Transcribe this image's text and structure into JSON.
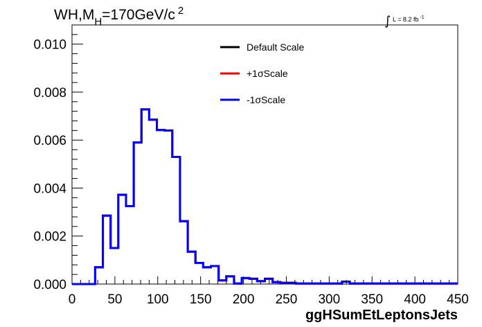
{
  "chart_data": {
    "type": "line",
    "title_main": "WH,M",
    "title_sub": "H",
    "title_rest": "=170GeV/c",
    "title_sup": "2",
    "lumi_label": "L = 8.2 fb",
    "lumi_sup": "-1",
    "xlabel": "ggHSumEtLeptonsJets",
    "xlim": [
      0,
      450
    ],
    "ylim": [
      0,
      0.0108
    ],
    "x_ticks": [
      "0",
      "50",
      "100",
      "150",
      "200",
      "250",
      "300",
      "350",
      "400",
      "450"
    ],
    "x_tick_values": [
      0,
      50,
      100,
      150,
      200,
      250,
      300,
      350,
      400,
      450
    ],
    "y_ticks": [
      "0.000",
      "0.002",
      "0.004",
      "0.006",
      "0.008",
      "0.010"
    ],
    "y_tick_values": [
      0,
      0.002,
      0.004,
      0.006,
      0.008,
      0.01
    ],
    "bin_width": 9,
    "bin_start": 0,
    "legend_position": "top-center",
    "series": [
      {
        "name": "Default Scale",
        "color": "#000000",
        "values": [
          0,
          0,
          0,
          0.0007,
          0.00285,
          0.0015,
          0.00372,
          0.00325,
          0.0059,
          0.00728,
          0.00685,
          0.00642,
          0.0064,
          0.0053,
          0.00262,
          0.00135,
          0.00088,
          0.0007,
          0.00075,
          0.00015,
          0.00032,
          2e-05,
          0.00025,
          0.00022,
          0.00012,
          0.00022,
          8e-05,
          5e-05,
          5e-05,
          2e-05,
          2e-05,
          2e-05,
          2e-05,
          2e-05,
          2e-05,
          0.0001,
          2e-05,
          2e-05,
          2e-05,
          2e-05,
          2e-05,
          2e-05,
          2e-05,
          2e-05,
          2e-05,
          2e-05,
          2e-05,
          2e-05,
          2e-05,
          2e-05
        ]
      },
      {
        "name": "+1σScale",
        "color": "#ff0000",
        "values": [
          0,
          0,
          0,
          0.0007,
          0.00285,
          0.0015,
          0.00372,
          0.00325,
          0.0059,
          0.00728,
          0.00685,
          0.00642,
          0.0064,
          0.0053,
          0.00262,
          0.00135,
          0.00088,
          0.0007,
          0.00075,
          0.00015,
          0.00032,
          2e-05,
          0.00025,
          0.00022,
          0.00012,
          0.00022,
          8e-05,
          5e-05,
          5e-05,
          2e-05,
          2e-05,
          2e-05,
          2e-05,
          2e-05,
          2e-05,
          0.0001,
          2e-05,
          2e-05,
          2e-05,
          2e-05,
          2e-05,
          2e-05,
          2e-05,
          2e-05,
          2e-05,
          2e-05,
          2e-05,
          2e-05,
          2e-05,
          2e-05
        ]
      },
      {
        "name": "-1σScale",
        "color": "#0000ff",
        "values": [
          0,
          0,
          0,
          0.0007,
          0.00285,
          0.0015,
          0.00372,
          0.00325,
          0.0059,
          0.00728,
          0.00685,
          0.00642,
          0.0064,
          0.0053,
          0.00262,
          0.00135,
          0.00088,
          0.0007,
          0.00075,
          0.00015,
          0.00032,
          2e-05,
          0.00025,
          0.00022,
          0.00012,
          0.00022,
          8e-05,
          5e-05,
          5e-05,
          2e-05,
          2e-05,
          2e-05,
          2e-05,
          2e-05,
          2e-05,
          0.0001,
          2e-05,
          2e-05,
          2e-05,
          2e-05,
          2e-05,
          2e-05,
          2e-05,
          2e-05,
          2e-05,
          2e-05,
          2e-05,
          2e-05,
          2e-05,
          2e-05
        ]
      }
    ]
  }
}
